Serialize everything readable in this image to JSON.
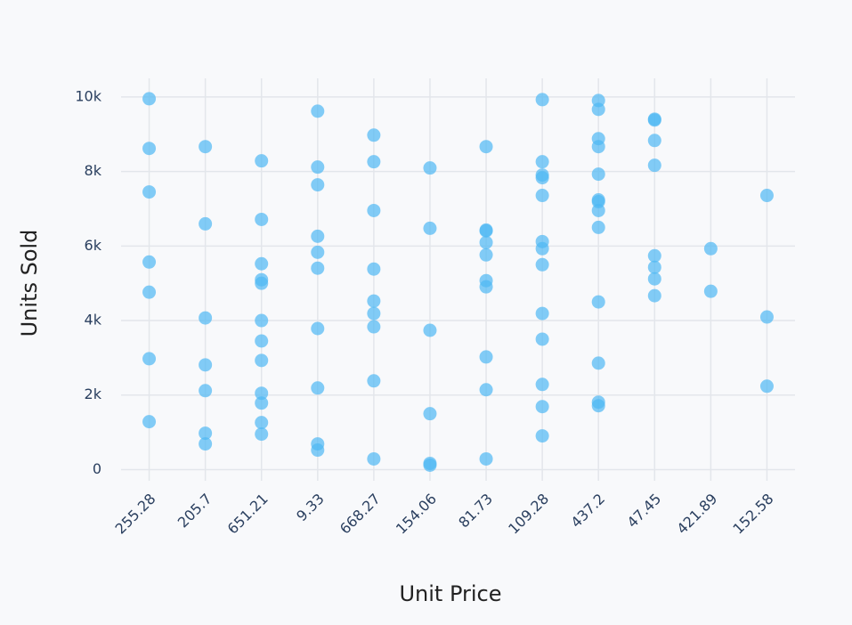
{
  "chart_data": {
    "type": "scatter",
    "x_label": "Unit Price",
    "y_label": "Units Sold",
    "categories": [
      "255.28",
      "205.7",
      "651.21",
      "9.33",
      "668.27",
      "154.06",
      "81.73",
      "109.28",
      "437.2",
      "47.45",
      "421.89",
      "152.58"
    ],
    "values": [
      [
        9952,
        8619,
        7452,
        5571,
        4762,
        2976,
        1286
      ],
      [
        8667,
        6595,
        4071,
        2810,
        2119,
        976,
        690
      ],
      [
        8286,
        6714,
        5524,
        5095,
        5000,
        4000,
        3452,
        2929,
        2048,
        1786,
        1262,
        952
      ],
      [
        9619,
        8119,
        7643,
        6262,
        5833,
        5405,
        3786,
        2190,
        690,
        524
      ],
      [
        8976,
        8262,
        6952,
        5381,
        4524,
        4190,
        3833,
        2381,
        286
      ],
      [
        8095,
        6476,
        3738,
        1500,
        167,
        119
      ],
      [
        8667,
        6429,
        6405,
        6095,
        5762,
        5071,
        4905,
        3024,
        2143,
        286
      ],
      [
        9929,
        8262,
        7905,
        7833,
        7357,
        6119,
        5929,
        5500,
        4190,
        3500,
        2286,
        1690,
        905
      ],
      [
        9905,
        9667,
        8881,
        8667,
        7929,
        7238,
        7190,
        6952,
        6500,
        4500,
        2857,
        1810,
        1714
      ],
      [
        9405,
        9381,
        8833,
        8167,
        5738,
        5429,
        5119,
        4667
      ],
      [
        5929,
        4786
      ],
      [
        7357,
        4095,
        2238
      ]
    ],
    "color": "#4fb8f3",
    "ylim": [
      -300,
      10500
    ],
    "yticks": [
      0,
      {
        "value": 2000,
        "label": "2k"
      },
      {
        "value": 4000,
        "label": "4k"
      },
      {
        "value": 6000,
        "label": "6k"
      },
      {
        "value": 8000,
        "label": "8k"
      },
      {
        "value": 10000,
        "label": "10k"
      }
    ],
    "grid": true
  }
}
